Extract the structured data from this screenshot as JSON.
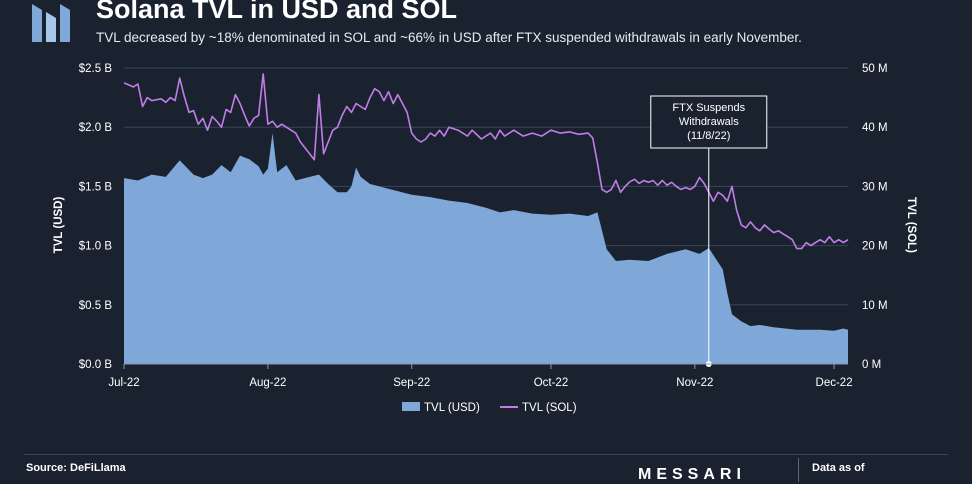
{
  "header": {
    "title": "Solana TVL in USD and SOL",
    "subtitle": "TVL decreased by ~18% denominated in SOL and ~66% in USD after FTX suspended withdrawals in early November."
  },
  "footer": {
    "source": "Source: DeFiLlama",
    "brand": "MESSARI",
    "data_as_of": "Data as of"
  },
  "colors": {
    "background": "#1a2230",
    "usd_area": "#7fa8d8",
    "sol_line": "#c07de8",
    "grid": "#3a4556"
  },
  "chart_data": {
    "type": "area",
    "xlabels": [
      "Jul-22",
      "Aug-22",
      "Sep-22",
      "Oct-22",
      "Nov-22",
      "Dec-22"
    ],
    "xlabel_days": [
      0,
      31,
      62,
      92,
      123,
      153
    ],
    "xlim_days": [
      0,
      156
    ],
    "y_left": {
      "label": "TVL (USD)",
      "range": [
        0,
        2.5
      ],
      "ticks": [
        0,
        0.5,
        1.0,
        1.5,
        2.0,
        2.5
      ],
      "tick_labels": [
        "$0.0 B",
        "$0.5 B",
        "$1.0 B",
        "$1.5 B",
        "$2.0 B",
        "$2.5 B"
      ]
    },
    "y_right": {
      "label": "TVL (SOL)",
      "range": [
        0,
        50
      ],
      "ticks": [
        0,
        10,
        20,
        30,
        40,
        50
      ],
      "tick_labels": [
        "0 M",
        "10 M",
        "20 M",
        "30 M",
        "40 M",
        "50 M"
      ]
    },
    "grid": true,
    "legend_position": "bottom-center",
    "annotation": {
      "lines": [
        "FTX Suspends",
        "Withdrawals",
        "(11/8/22)"
      ],
      "day": 126
    },
    "series": [
      {
        "name": "TVL (USD)",
        "type": "area",
        "axis": "left",
        "points": [
          [
            0,
            1.57
          ],
          [
            3,
            1.55
          ],
          [
            6,
            1.6
          ],
          [
            9,
            1.58
          ],
          [
            12,
            1.72
          ],
          [
            15,
            1.6
          ],
          [
            17,
            1.57
          ],
          [
            19,
            1.6
          ],
          [
            21,
            1.68
          ],
          [
            23,
            1.62
          ],
          [
            25,
            1.76
          ],
          [
            27,
            1.73
          ],
          [
            29,
            1.67
          ],
          [
            30,
            1.6
          ],
          [
            31,
            1.65
          ],
          [
            32,
            1.95
          ],
          [
            33,
            1.62
          ],
          [
            35,
            1.68
          ],
          [
            37,
            1.55
          ],
          [
            40,
            1.58
          ],
          [
            42,
            1.6
          ],
          [
            44,
            1.52
          ],
          [
            46,
            1.45
          ],
          [
            48,
            1.45
          ],
          [
            49,
            1.5
          ],
          [
            50,
            1.66
          ],
          [
            51,
            1.58
          ],
          [
            53,
            1.52
          ],
          [
            55,
            1.5
          ],
          [
            58,
            1.47
          ],
          [
            62,
            1.43
          ],
          [
            66,
            1.41
          ],
          [
            70,
            1.38
          ],
          [
            74,
            1.36
          ],
          [
            78,
            1.32
          ],
          [
            81,
            1.28
          ],
          [
            84,
            1.3
          ],
          [
            88,
            1.27
          ],
          [
            92,
            1.26
          ],
          [
            96,
            1.27
          ],
          [
            100,
            1.25
          ],
          [
            102,
            1.28
          ],
          [
            104,
            0.97
          ],
          [
            106,
            0.87
          ],
          [
            109,
            0.88
          ],
          [
            113,
            0.87
          ],
          [
            117,
            0.93
          ],
          [
            121,
            0.97
          ],
          [
            124,
            0.93
          ],
          [
            126,
            0.98
          ],
          [
            127,
            0.92
          ],
          [
            129,
            0.8
          ],
          [
            130,
            0.6
          ],
          [
            131,
            0.42
          ],
          [
            133,
            0.36
          ],
          [
            135,
            0.32
          ],
          [
            137,
            0.33
          ],
          [
            140,
            0.31
          ],
          [
            145,
            0.29
          ],
          [
            150,
            0.29
          ],
          [
            153,
            0.28
          ],
          [
            155,
            0.3
          ],
          [
            156,
            0.29
          ]
        ]
      },
      {
        "name": "TVL (SOL)",
        "type": "line",
        "axis": "right",
        "points": [
          [
            0,
            47.5
          ],
          [
            2,
            46.8
          ],
          [
            3,
            47.3
          ],
          [
            4,
            43.5
          ],
          [
            5,
            45
          ],
          [
            6,
            44.5
          ],
          [
            8,
            44.8
          ],
          [
            9,
            44.2
          ],
          [
            10,
            45
          ],
          [
            11,
            44.5
          ],
          [
            12,
            48.3
          ],
          [
            13,
            45.2
          ],
          [
            14,
            42.5
          ],
          [
            15,
            42.8
          ],
          [
            16,
            40.5
          ],
          [
            17,
            41.5
          ],
          [
            18,
            39.5
          ],
          [
            19,
            41.8
          ],
          [
            20,
            41
          ],
          [
            21,
            40
          ],
          [
            22,
            43
          ],
          [
            23,
            42.5
          ],
          [
            24,
            45.5
          ],
          [
            25,
            44
          ],
          [
            26,
            42
          ],
          [
            27,
            40.2
          ],
          [
            28,
            41.5
          ],
          [
            29,
            42
          ],
          [
            30,
            49
          ],
          [
            31,
            40.5
          ],
          [
            32,
            41
          ],
          [
            33,
            40
          ],
          [
            34,
            40.5
          ],
          [
            35,
            40
          ],
          [
            36,
            39.5
          ],
          [
            37,
            39
          ],
          [
            38,
            37.5
          ],
          [
            39,
            36.5
          ],
          [
            40,
            35.5
          ],
          [
            41,
            34.5
          ],
          [
            42,
            45.5
          ],
          [
            43,
            35.5
          ],
          [
            44,
            37.5
          ],
          [
            45,
            39.5
          ],
          [
            46,
            40
          ],
          [
            47,
            42
          ],
          [
            48,
            43.5
          ],
          [
            49,
            42.5
          ],
          [
            50,
            44
          ],
          [
            51,
            43.5
          ],
          [
            52,
            43
          ],
          [
            53,
            45
          ],
          [
            54,
            46.5
          ],
          [
            55,
            46
          ],
          [
            56,
            44.5
          ],
          [
            57,
            46
          ],
          [
            58,
            44
          ],
          [
            59,
            45.5
          ],
          [
            60,
            44
          ],
          [
            61,
            42.5
          ],
          [
            62,
            39
          ],
          [
            63,
            38
          ],
          [
            64,
            37.5
          ],
          [
            65,
            38
          ],
          [
            66,
            39
          ],
          [
            67,
            38.5
          ],
          [
            68,
            39.5
          ],
          [
            69,
            38.5
          ],
          [
            70,
            40
          ],
          [
            72,
            39.5
          ],
          [
            74,
            38.5
          ],
          [
            75,
            39.5
          ],
          [
            77,
            38
          ],
          [
            79,
            39
          ],
          [
            80,
            38
          ],
          [
            81,
            39.5
          ],
          [
            82,
            38.5
          ],
          [
            84,
            39.5
          ],
          [
            86,
            38.5
          ],
          [
            88,
            39
          ],
          [
            90,
            38.5
          ],
          [
            92,
            39.5
          ],
          [
            94,
            39
          ],
          [
            96,
            39.2
          ],
          [
            98,
            38.8
          ],
          [
            100,
            39
          ],
          [
            101,
            38.2
          ],
          [
            102,
            34
          ],
          [
            103,
            29.5
          ],
          [
            104,
            29
          ],
          [
            105,
            29.5
          ],
          [
            106,
            31
          ],
          [
            107,
            29
          ],
          [
            108,
            30
          ],
          [
            109,
            30.8
          ],
          [
            110,
            31.2
          ],
          [
            111,
            30.5
          ],
          [
            112,
            31
          ],
          [
            113,
            30.7
          ],
          [
            114,
            31
          ],
          [
            115,
            30.2
          ],
          [
            116,
            31
          ],
          [
            117,
            30.2
          ],
          [
            118,
            30.7
          ],
          [
            119,
            30
          ],
          [
            120,
            29.5
          ],
          [
            121,
            29.8
          ],
          [
            122,
            29.5
          ],
          [
            123,
            30
          ],
          [
            124,
            31.5
          ],
          [
            125,
            30.5
          ],
          [
            126,
            29
          ],
          [
            127,
            27.5
          ],
          [
            128,
            29
          ],
          [
            129,
            28.5
          ],
          [
            130,
            27.5
          ],
          [
            131,
            30
          ],
          [
            132,
            26
          ],
          [
            133,
            23.5
          ],
          [
            134,
            23
          ],
          [
            135,
            24
          ],
          [
            136,
            23
          ],
          [
            137,
            22.5
          ],
          [
            138,
            23.5
          ],
          [
            139,
            22.8
          ],
          [
            140,
            22.2
          ],
          [
            141,
            22.5
          ],
          [
            142,
            22
          ],
          [
            143,
            21.5
          ],
          [
            144,
            21
          ],
          [
            145,
            19.5
          ],
          [
            146,
            19.5
          ],
          [
            147,
            20.5
          ],
          [
            148,
            20
          ],
          [
            149,
            20.5
          ],
          [
            150,
            21
          ],
          [
            151,
            20.5
          ],
          [
            152,
            21.5
          ],
          [
            153,
            20.5
          ],
          [
            154,
            21
          ],
          [
            155,
            20.5
          ],
          [
            156,
            21
          ]
        ]
      }
    ]
  }
}
